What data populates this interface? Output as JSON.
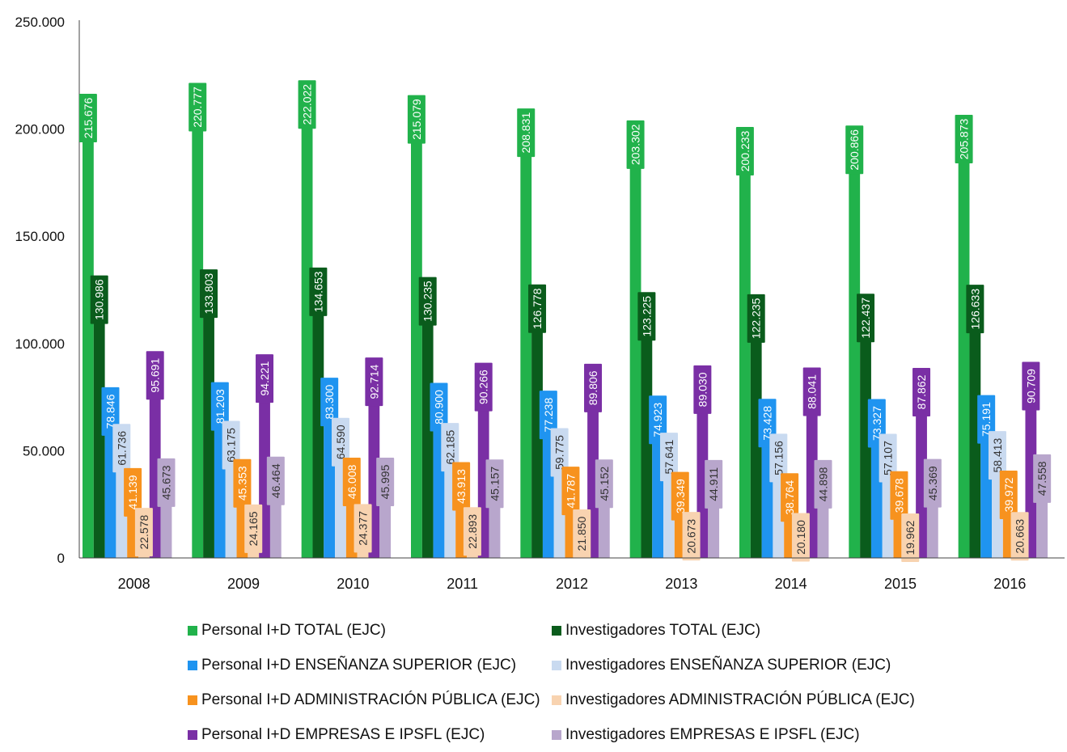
{
  "chart_data": {
    "type": "bar",
    "categories": [
      "2008",
      "2009",
      "2010",
      "2011",
      "2012",
      "2013",
      "2014",
      "2015",
      "2016"
    ],
    "ylim": [
      0,
      250000
    ],
    "yticks": [
      0,
      50000,
      100000,
      150000,
      200000,
      250000
    ],
    "ytick_labels": [
      "0",
      "50.000",
      "100.000",
      "150.000",
      "200.000",
      "250.000"
    ],
    "grid": false,
    "legend_position": "bottom",
    "series": [
      {
        "name": "Personal I+D TOTAL (EJC)",
        "color": "#21b24b",
        "values": [
          215676,
          220777,
          222022,
          215079,
          208831,
          203302,
          200233,
          200866,
          205873
        ],
        "labels": [
          "215.676",
          "220.777",
          "222.022",
          "215.079",
          "208.831",
          "203.302",
          "200.233",
          "200.866",
          "205.873"
        ]
      },
      {
        "name": "Investigadores TOTAL (EJC)",
        "color": "#0a5c1c",
        "values": [
          130986,
          133803,
          134653,
          130235,
          126778,
          123225,
          122235,
          122437,
          126633
        ],
        "labels": [
          "130.986",
          "133.803",
          "134.653",
          "130.235",
          "126.778",
          "123.225",
          "122.235",
          "122.437",
          "126.633"
        ]
      },
      {
        "name": "Personal I+D ENSEÑANZA SUPERIOR (EJC)",
        "color": "#1f94f0",
        "values": [
          78846,
          81203,
          83300,
          80900,
          77238,
          74923,
          73428,
          73327,
          75191
        ],
        "labels": [
          "78.846",
          "81.203",
          "83.300",
          "80.900",
          "77.238",
          "74.923",
          "73.428",
          "73.327",
          "75.191"
        ]
      },
      {
        "name": "Investigadores ENSEÑANZA SUPERIOR (EJC)",
        "color": "#c9daf0",
        "values": [
          61736,
          63175,
          64590,
          62185,
          59775,
          57641,
          57156,
          57107,
          58413
        ],
        "labels": [
          "61.736",
          "63.175",
          "64.590",
          "62.185",
          "59.775",
          "57.641",
          "57.156",
          "57.107",
          "58.413"
        ]
      },
      {
        "name": "Personal I+D ADMINISTRACIÓN PÚBLICA (EJC)",
        "color": "#f7921e",
        "values": [
          41139,
          45353,
          46008,
          43913,
          41787,
          39349,
          38764,
          39678,
          39972
        ],
        "labels": [
          "41.139",
          "45.353",
          "46.008",
          "43.913",
          "41.787",
          "39.349",
          "38.764",
          "39.678",
          "39.972"
        ]
      },
      {
        "name": "Investigadores ADMINISTRACIÓN PÚBLICA (EJC)",
        "color": "#f8d3b0",
        "values": [
          22578,
          24165,
          24377,
          22893,
          21850,
          20673,
          20180,
          19962,
          20663
        ],
        "labels": [
          "22.578",
          "24.165",
          "24.377",
          "22.893",
          "21.850",
          "20.673",
          "20.180",
          "19.962",
          "20.663"
        ]
      },
      {
        "name": "Personal I+D EMPRESAS E IPSFL (EJC)",
        "color": "#7a2fa5",
        "values": [
          95691,
          94221,
          92714,
          90266,
          89806,
          89030,
          88041,
          87862,
          90709
        ],
        "labels": [
          "95.691",
          "94.221",
          "92.714",
          "90.266",
          "89.806",
          "89.030",
          "88.041",
          "87.862",
          "90.709"
        ]
      },
      {
        "name": "Investigadores EMPRESAS E IPSFL (EJC)",
        "color": "#b8a6cc",
        "values": [
          45673,
          46464,
          45995,
          45157,
          45152,
          44911,
          44898,
          45369,
          47558
        ],
        "labels": [
          "45.673",
          "46.464",
          "45.995",
          "45.157",
          "45.152",
          "44.911",
          "44.898",
          "45.369",
          "47.558"
        ]
      }
    ]
  }
}
